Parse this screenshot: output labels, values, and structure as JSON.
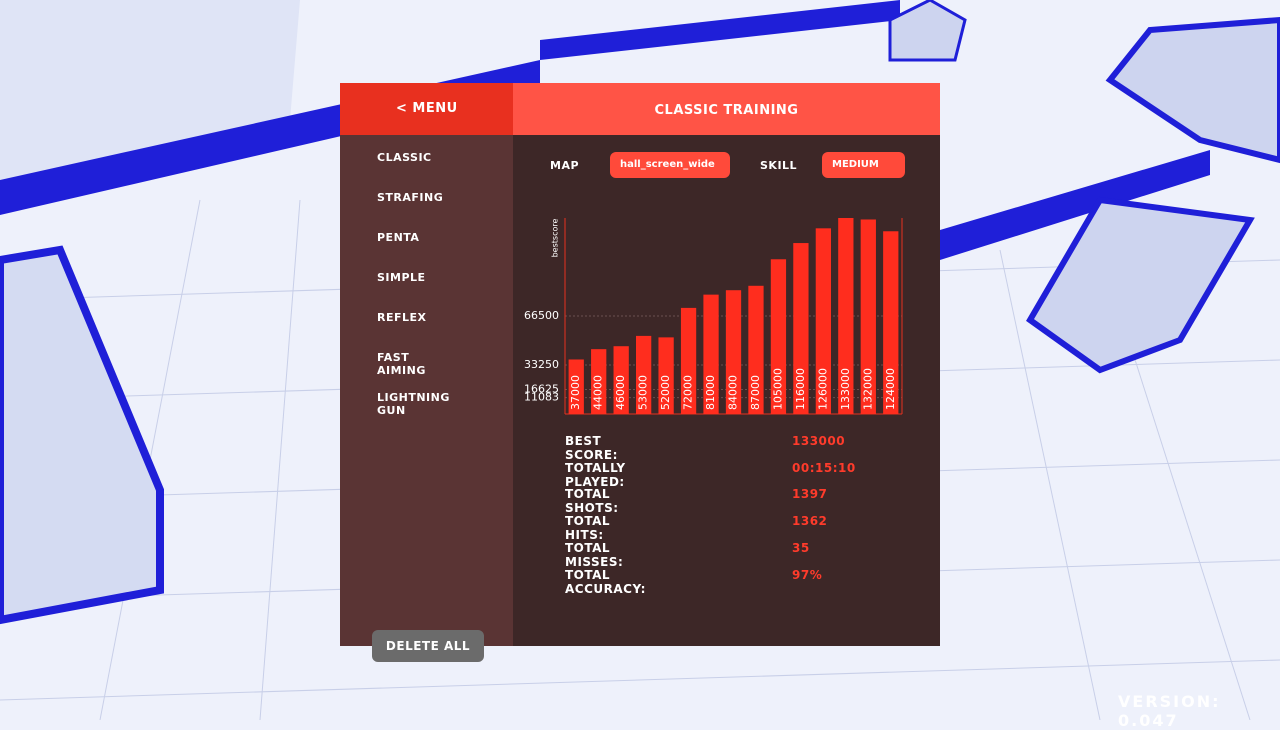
{
  "header": {
    "menu": "< MENU",
    "title": "CLASSIC TRAINING"
  },
  "sidebar": {
    "modes": [
      "CLASSIC",
      "STRAFING",
      "PENTA",
      "SIMPLE",
      "REFLEX",
      "FAST AIMING",
      "LIGHTNING GUN"
    ],
    "delete": "DELETE ALL"
  },
  "filters": {
    "map_label": "MAP",
    "map": "hall_screen_wide",
    "skill_label": "SKILL",
    "skill": "MEDIUM"
  },
  "chart_data": {
    "type": "bar",
    "y_label": "bestscore",
    "values": [
      37000,
      44000,
      46000,
      53000,
      52000,
      72000,
      81000,
      84000,
      87000,
      105000,
      116000,
      126000,
      133000,
      132000,
      124000
    ],
    "color": "#ff2d1e",
    "ylim": [
      0,
      133000
    ],
    "yticks": [
      11083,
      16625,
      33250,
      66500
    ],
    "grid": true
  },
  "stats": [
    {
      "label": "BEST SCORE:",
      "value": 133000
    },
    {
      "label": "TOTALLY PLAYED:",
      "value": "00:15:10"
    },
    {
      "label": "TOTAL SHOTS:",
      "value": 1397
    },
    {
      "label": "TOTAL HITS:",
      "value": 1362
    },
    {
      "label": "TOTAL MISSES:",
      "value": 35
    },
    {
      "label": "TOTAL ACCURACY:",
      "value": "97%"
    }
  ],
  "version": "VERSION: 0.047"
}
